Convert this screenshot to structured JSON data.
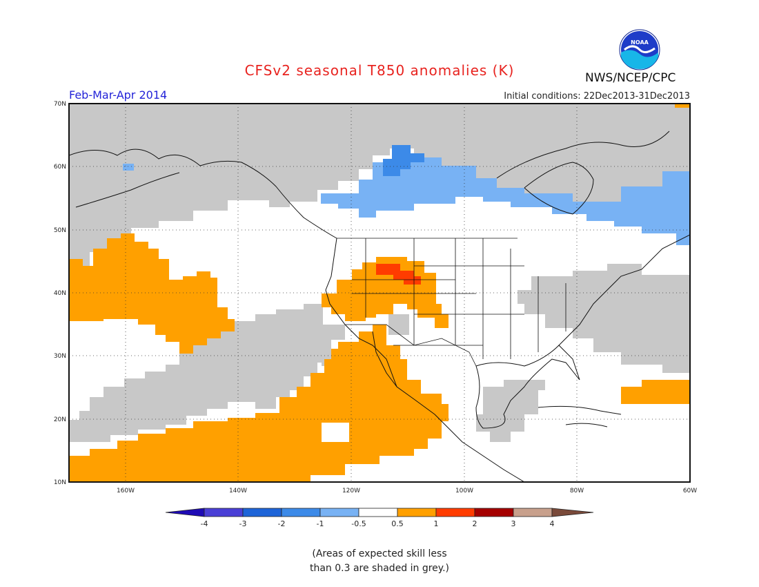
{
  "header": {
    "title": "CFSv2 seasonal T850 anomalies (K)",
    "period": "Feb-Mar-Apr 2014",
    "initial_conditions": "Initial conditions: 22Dec2013-31Dec2013",
    "agency": "NWS/NCEP/CPC",
    "logo_text": "NOAA"
  },
  "map": {
    "lat_labels": [
      "70N",
      "60N",
      "50N",
      "40N",
      "30N",
      "20N",
      "10N"
    ],
    "lon_labels": [
      "160W",
      "140W",
      "120W",
      "100W",
      "80W",
      "60W"
    ],
    "lat_range": [
      10,
      70
    ],
    "lon_range": [
      -170,
      -60
    ],
    "grid": true
  },
  "colorbar": {
    "tick_labels": [
      "-4",
      "-3",
      "-2",
      "-1",
      "-0.5",
      "0.5",
      "1",
      "2",
      "3",
      "4"
    ],
    "colors": [
      "#1e0bb5",
      "#4a3fd6",
      "#1e64d8",
      "#3c8ae8",
      "#78b2f4",
      "#ffffff",
      "#ffa000",
      "#ff3c00",
      "#a50000",
      "#c8a08c",
      "#7a4a3a"
    ]
  },
  "legend_note": "(Areas of expected skill less\nthan 0.3 are shaded in grey.)",
  "colors": {
    "grey_low_skill": "#c8c8c8",
    "warm_anomaly": "#ffa000",
    "strong_warm": "#ff3c00",
    "cool_anomaly": "#78b2f4",
    "strong_cool": "#3c8ae8"
  }
}
